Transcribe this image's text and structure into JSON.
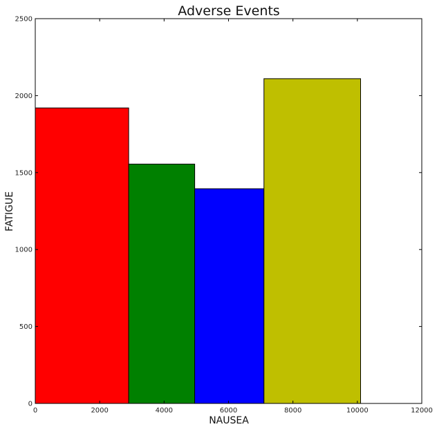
{
  "chart_data": {
    "type": "bar",
    "title": "Adverse Events",
    "xlabel": "NAUSEA",
    "ylabel": "FATIGUE",
    "xlim": [
      0,
      12000
    ],
    "ylim": [
      0,
      2500
    ],
    "x_ticks": [
      0,
      2000,
      4000,
      6000,
      8000,
      10000,
      12000
    ],
    "y_ticks": [
      0,
      500,
      1000,
      1500,
      2000,
      2500
    ],
    "grid": false,
    "bars": [
      {
        "x_start": 0,
        "x_end": 2900,
        "value": 1920,
        "color": "#ff0000"
      },
      {
        "x_start": 2900,
        "x_end": 4950,
        "value": 1555,
        "color": "#008000"
      },
      {
        "x_start": 4950,
        "x_end": 7100,
        "value": 1395,
        "color": "#0000ff"
      },
      {
        "x_start": 7100,
        "x_end": 10100,
        "value": 2110,
        "color": "#bfbf00"
      }
    ]
  }
}
